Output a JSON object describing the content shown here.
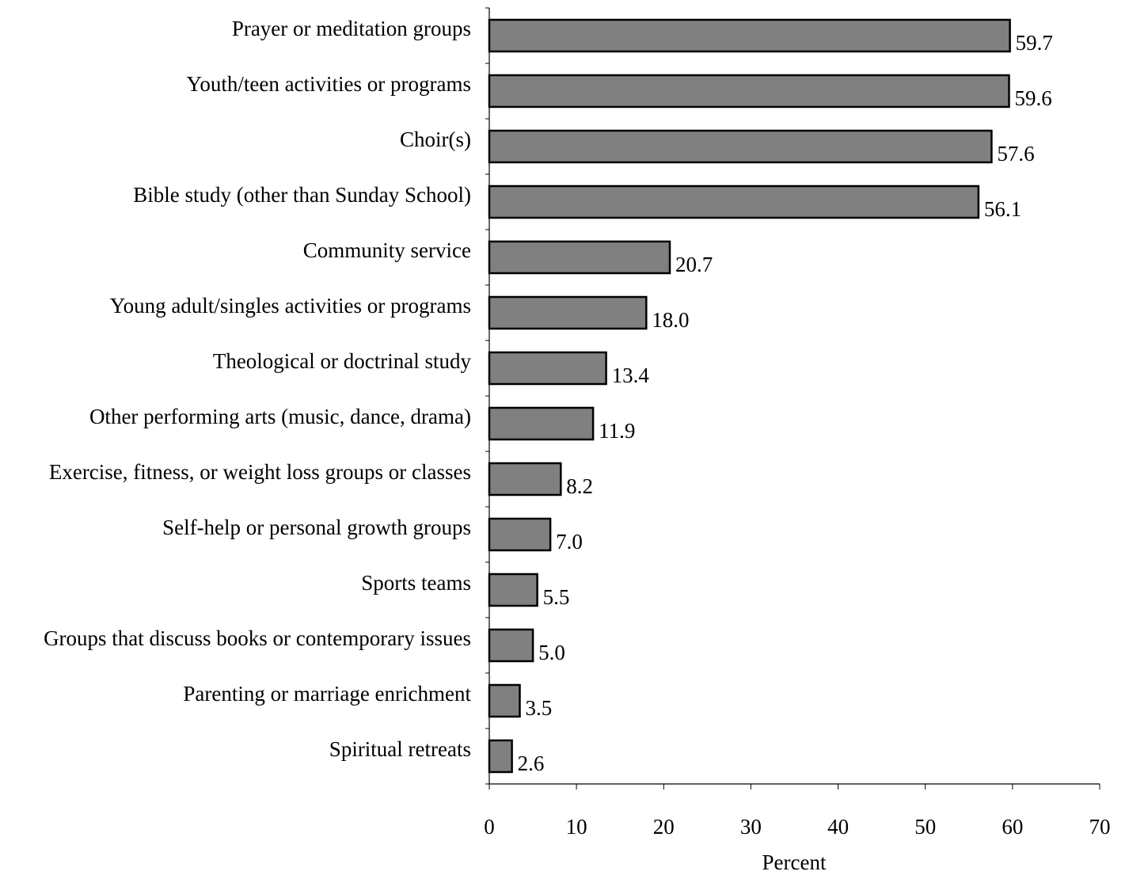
{
  "chart_data": {
    "type": "bar",
    "orientation": "horizontal",
    "categories": [
      "Prayer or meditation groups",
      "Youth/teen activities or programs",
      "Choir(s)",
      "Bible study (other than Sunday School)",
      "Community service",
      "Young adult/singles activities or programs",
      "Theological or doctrinal study",
      "Other performing arts (music, dance, drama)",
      "Exercise, fitness, or weight loss groups or classes",
      "Self-help or personal growth groups",
      "Sports teams",
      "Groups that discuss books or contemporary issues",
      "Parenting or marriage enrichment",
      "Spiritual retreats"
    ],
    "values": [
      59.7,
      59.6,
      57.6,
      56.1,
      20.7,
      18.0,
      13.4,
      11.9,
      8.2,
      7.0,
      5.5,
      5.0,
      3.5,
      2.6
    ],
    "value_labels": [
      "59.7",
      "59.6",
      "57.6",
      "56.1",
      "20.7",
      "18.0",
      "13.4",
      "11.9",
      "8.2",
      "7.0",
      "5.5",
      "5.0",
      "3.5",
      "2.6"
    ],
    "title": "",
    "xlabel": "Percent",
    "ylabel": "",
    "xlim": [
      0,
      70
    ],
    "xticks": [
      0,
      10,
      20,
      30,
      40,
      50,
      60,
      70
    ],
    "xtick_labels": [
      "0",
      "10",
      "20",
      "30",
      "40",
      "50",
      "60",
      "70"
    ],
    "grid": false,
    "legend": "none",
    "bar_color": "#808080",
    "bar_outline_color": "#000000"
  }
}
